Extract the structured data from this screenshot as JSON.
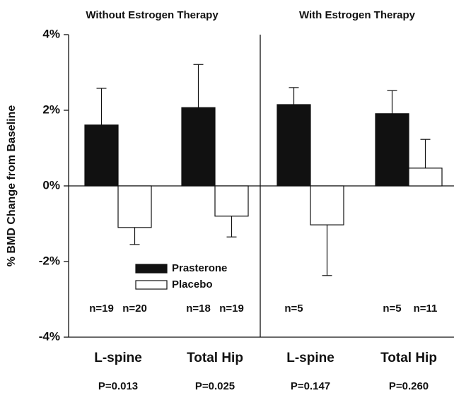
{
  "chart_data": {
    "type": "bar",
    "panels": [
      "Without Estrogen Therapy",
      "With Estrogen Therapy"
    ],
    "y_label": "% BMD Change from Baseline",
    "categories": [
      "L-spine",
      "Total Hip",
      "L-spine",
      "Total Hip"
    ],
    "p_values": [
      "P=0.013",
      "P=0.025",
      "P=0.147",
      "P=0.260"
    ],
    "series": [
      {
        "name": "Prasterone",
        "color": "#111111",
        "values": [
          1.61,
          2.07,
          2.15,
          1.91
        ],
        "errors": [
          0.97,
          1.14,
          0.45,
          0.61
        ],
        "n_labels": [
          "n=19",
          "n=18",
          "n=5",
          "n=5"
        ]
      },
      {
        "name": "Placebo",
        "color": "#ffffff",
        "values": [
          -1.1,
          -0.8,
          -1.03,
          0.47
        ],
        "errors": [
          0.45,
          0.55,
          1.34,
          0.76
        ],
        "n_labels": [
          "n=20",
          "n=19",
          null,
          "n=11"
        ]
      }
    ],
    "ylim": [
      -4,
      4
    ],
    "yticks": [
      {
        "value": -4,
        "label": "-4%"
      },
      {
        "value": -2,
        "label": "-2%"
      },
      {
        "value": 0,
        "label": "0%"
      },
      {
        "value": 2,
        "label": "2%"
      },
      {
        "value": 4,
        "label": "4%"
      }
    ]
  }
}
